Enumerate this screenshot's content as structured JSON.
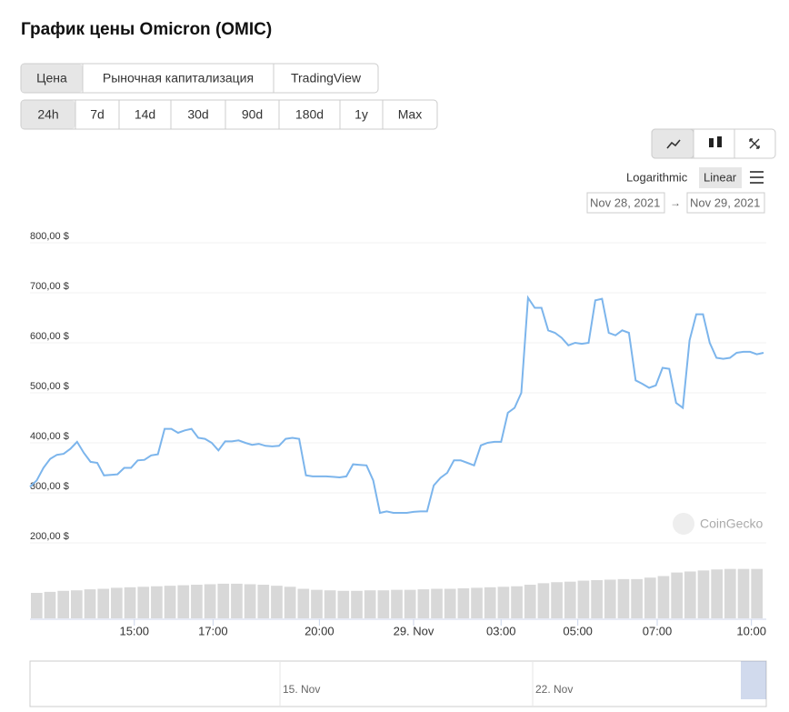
{
  "ui": {
    "title": "График цены Omicron (OMIC)",
    "tabs": [
      "Цена",
      "Рыночная капитализация",
      "TradingView"
    ],
    "ranges": [
      "24h",
      "7d",
      "14d",
      "30d",
      "90d",
      "180d",
      "1y",
      "Max"
    ],
    "scale": {
      "log": "Logarithmic",
      "linear": "Linear"
    },
    "dates": {
      "from": "Nov 28, 2021",
      "separator": "→",
      "to": "Nov 29, 2021"
    },
    "watermark": "CoinGecko",
    "navigator_labels": [
      "15. Nov",
      "22. Nov"
    ]
  },
  "chart_data": {
    "type": "line",
    "color": "#7cb5ec",
    "grid": true,
    "values": [
      312,
      325,
      350,
      368,
      376,
      378,
      388,
      402,
      380,
      362,
      360,
      335,
      336,
      337,
      350,
      350,
      365,
      366,
      375,
      377,
      428,
      428,
      420,
      425,
      428,
      410,
      408,
      400,
      385,
      403,
      403,
      405,
      400,
      396,
      398,
      394,
      393,
      394,
      408,
      410,
      408,
      335,
      333,
      333,
      333,
      332,
      331,
      333,
      357,
      356,
      355,
      325,
      260,
      263,
      260,
      260,
      260,
      262,
      263,
      263,
      315,
      330,
      340,
      365,
      365,
      360,
      355,
      395,
      400,
      402,
      402,
      460,
      470,
      500,
      690,
      670,
      670,
      625,
      620,
      610,
      595,
      600,
      598,
      600,
      685,
      688,
      620,
      615,
      625,
      620,
      525,
      518,
      510,
      515,
      550,
      548,
      480,
      470,
      605,
      657,
      657,
      600,
      570,
      568,
      570,
      580,
      582,
      582,
      577,
      580
    ],
    "xlim": [
      0,
      109
    ],
    "xticks": [
      {
        "value": 15.5,
        "label": "15:00"
      },
      {
        "value": 27.2,
        "label": "17:00"
      },
      {
        "value": 43,
        "label": "20:00"
      },
      {
        "value": 57,
        "label": "29. Nov"
      },
      {
        "value": 70,
        "label": "03:00"
      },
      {
        "value": 81.4,
        "label": "05:00"
      },
      {
        "value": 93.2,
        "label": "07:00"
      },
      {
        "value": 107.2,
        "label": "10:00"
      }
    ],
    "ylim": [
      200,
      800
    ],
    "yticks": [
      {
        "value": 200,
        "label": "200,00 $"
      },
      {
        "value": 300,
        "label": "300,00 $"
      },
      {
        "value": 400,
        "label": "400,00 $"
      },
      {
        "value": 500,
        "label": "500,00 $"
      },
      {
        "value": 600,
        "label": "600,00 $"
      },
      {
        "value": 700,
        "label": "700,00 $"
      },
      {
        "value": 800,
        "label": "800,00 $"
      }
    ],
    "volume": {
      "color": "#d8d8d8",
      "ylim": [
        0,
        100
      ],
      "values": [
        50,
        52,
        54,
        55,
        57,
        58,
        60,
        61,
        62,
        63,
        64,
        65,
        66,
        67,
        68,
        68,
        67,
        66,
        64,
        62,
        58,
        56,
        55,
        54,
        54,
        55,
        55,
        56,
        56,
        57,
        58,
        58,
        59,
        60,
        61,
        62,
        63,
        66,
        69,
        71,
        72,
        74,
        75,
        76,
        77,
        77,
        80,
        83,
        90,
        92,
        94,
        96,
        97,
        97,
        97
      ]
    }
  }
}
